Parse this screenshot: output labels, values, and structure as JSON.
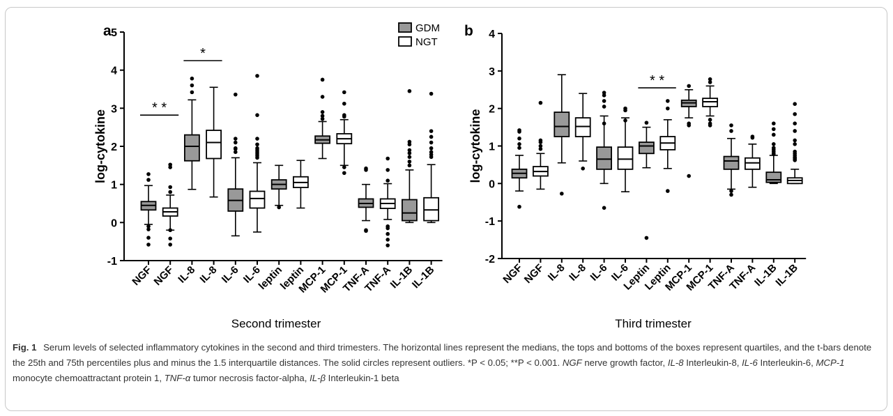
{
  "caption": {
    "label": "Fig. 1",
    "text": "Serum levels of selected inflammatory cytokines in the second and third trimesters. The horizontal lines represent the medians, the tops and bottoms of the boxes represent quartiles, and the t-bars denote the 25th and 75th percentiles plus and minus the 1.5 interquartile distances. The solid circles represent outliers. *P < 0.05; **P < 0.001.",
    "abbreviations": [
      {
        "abbr": "NGF",
        "desc": "nerve growth factor,"
      },
      {
        "abbr": "IL-8",
        "desc": "Interleukin-8,"
      },
      {
        "abbr": "IL-6",
        "desc": "Interleukin-6,"
      },
      {
        "abbr": "MCP-1",
        "desc": "monocyte chemoattractant protein 1,"
      },
      {
        "abbr": "TNF-α",
        "desc": "tumor necrosis factor-alpha,"
      },
      {
        "abbr": "IL-β",
        "desc": "Interleukin-1 beta"
      }
    ]
  },
  "legend": {
    "entries": [
      {
        "name": "GDM",
        "fill": "#999999"
      },
      {
        "name": "NGT",
        "fill": "#ffffff"
      }
    ],
    "placement": "top-right of panel a"
  },
  "colors": {
    "gdm_fill": "#999999",
    "ngt_fill": "#ffffff",
    "stroke": "#000000"
  },
  "chart_data": [
    {
      "type": "box",
      "panel_label": "a",
      "xlabel": "Second trimester",
      "ylabel": "log-cytokine",
      "ylim": [
        -1,
        5
      ],
      "yticks": [
        "-1",
        "0",
        "1",
        "2",
        "3",
        "4",
        "5"
      ],
      "categories": [
        "NGF",
        "NGF",
        "IL-8",
        "IL-8",
        "IL-6",
        "IL-6",
        "leptin",
        "leptin",
        "MCP-1",
        "MCP-1",
        "TNF-A",
        "TNF-A",
        "IL-1B",
        "IL-1B"
      ],
      "groups": [
        "GDM",
        "NGT",
        "GDM",
        "NGT",
        "GDM",
        "NGT",
        "GDM",
        "NGT",
        "GDM",
        "NGT",
        "GDM",
        "NGT",
        "GDM",
        "NGT"
      ],
      "boxes": [
        {
          "lw": -0.05,
          "q1": 0.33,
          "median": 0.45,
          "q3": 0.55,
          "uw": 0.97,
          "outliers": [
            1.27,
            1.12,
            -0.1,
            -0.18,
            -0.4,
            -0.58
          ]
        },
        {
          "lw": -0.2,
          "q1": 0.17,
          "median": 0.28,
          "q3": 0.38,
          "uw": 0.72,
          "outliers": [
            1.52,
            1.45,
            0.93,
            0.8,
            -0.2,
            -0.42,
            -0.58
          ]
        },
        {
          "lw": 0.87,
          "q1": 1.62,
          "median": 2.0,
          "q3": 2.3,
          "uw": 3.22,
          "outliers": [
            3.78,
            3.6,
            3.42
          ]
        },
        {
          "lw": 0.67,
          "q1": 1.68,
          "median": 2.1,
          "q3": 2.42,
          "uw": 3.55,
          "outliers": []
        },
        {
          "lw": -0.35,
          "q1": 0.3,
          "median": 0.58,
          "q3": 0.88,
          "uw": 1.7,
          "outliers": [
            3.36,
            2.2,
            2.1,
            1.95,
            1.93,
            1.85
          ]
        },
        {
          "lw": -0.25,
          "q1": 0.38,
          "median": 0.63,
          "q3": 0.82,
          "uw": 1.57,
          "outliers": [
            3.85,
            2.82,
            2.2,
            2.05,
            1.95,
            1.9,
            1.85,
            1.8,
            1.75,
            1.7
          ]
        },
        {
          "lw": 0.45,
          "q1": 0.88,
          "median": 1.0,
          "q3": 1.12,
          "uw": 1.5,
          "outliers": [
            0.4
          ]
        },
        {
          "lw": 0.38,
          "q1": 0.92,
          "median": 1.05,
          "q3": 1.2,
          "uw": 1.63,
          "outliers": []
        },
        {
          "lw": 1.68,
          "q1": 2.08,
          "median": 2.17,
          "q3": 2.27,
          "uw": 2.65,
          "outliers": [
            3.75,
            3.3,
            2.9,
            2.8,
            2.72
          ]
        },
        {
          "lw": 1.5,
          "q1": 2.07,
          "median": 2.2,
          "q3": 2.33,
          "uw": 2.7,
          "outliers": [
            3.42,
            3.12,
            2.82,
            2.78,
            1.45,
            1.3
          ]
        },
        {
          "lw": 0.05,
          "q1": 0.4,
          "median": 0.5,
          "q3": 0.62,
          "uw": 1.0,
          "outliers": [
            1.42,
            1.38,
            -0.2,
            -0.22
          ]
        },
        {
          "lw": 0.08,
          "q1": 0.37,
          "median": 0.5,
          "q3": 0.62,
          "uw": 1.02,
          "outliers": [
            1.68,
            1.38,
            1.1,
            -0.1,
            -0.15,
            -0.3,
            -0.45,
            -0.6
          ]
        },
        {
          "lw": 0.0,
          "q1": 0.05,
          "median": 0.25,
          "q3": 0.6,
          "uw": 1.38,
          "outliers": [
            3.45,
            2.12,
            2.05,
            1.9,
            1.82,
            1.72,
            1.6,
            1.5
          ]
        },
        {
          "lw": 0.0,
          "q1": 0.05,
          "median": 0.33,
          "q3": 0.65,
          "uw": 1.52,
          "outliers": [
            3.38,
            2.4,
            2.25,
            2.1,
            1.95,
            1.85,
            1.78,
            1.72
          ]
        }
      ],
      "annotations": [
        {
          "text": "* *",
          "between": [
            0,
            1
          ],
          "y": 2.82
        },
        {
          "text": "*",
          "between": [
            2,
            3
          ],
          "y": 4.25
        }
      ]
    },
    {
      "type": "box",
      "panel_label": "b",
      "xlabel": "Third trimester",
      "ylabel": "log-cytokine",
      "ylim": [
        -2,
        4
      ],
      "yticks": [
        "-2",
        "-1",
        "0",
        "1",
        "2",
        "3",
        "4"
      ],
      "categories": [
        "NGF",
        "NGF",
        "IL-8",
        "IL-8",
        "IL-6",
        "IL-6",
        "Leptin",
        "Leptin",
        "MCP-1",
        "MCP-1",
        "TNF-A",
        "TNF-A",
        "IL-1B",
        "IL-1B"
      ],
      "groups": [
        "GDM",
        "NGT",
        "GDM",
        "NGT",
        "GDM",
        "NGT",
        "GDM",
        "NGT",
        "GDM",
        "NGT",
        "GDM",
        "NGT",
        "GDM",
        "NGT"
      ],
      "boxes": [
        {
          "lw": -0.2,
          "q1": 0.15,
          "median": 0.27,
          "q3": 0.38,
          "uw": 0.75,
          "outliers": [
            1.42,
            1.38,
            1.2,
            1.05,
            0.95,
            -0.62
          ]
        },
        {
          "lw": -0.15,
          "q1": 0.2,
          "median": 0.32,
          "q3": 0.45,
          "uw": 0.8,
          "outliers": [
            2.15,
            1.15,
            1.1,
            1.0,
            0.92
          ]
        },
        {
          "lw": 0.55,
          "q1": 1.25,
          "median": 1.52,
          "q3": 1.9,
          "uw": 2.9,
          "outliers": [
            -0.27
          ]
        },
        {
          "lw": 0.6,
          "q1": 1.25,
          "median": 1.52,
          "q3": 1.75,
          "uw": 2.4,
          "outliers": [
            0.4
          ]
        },
        {
          "lw": 0.0,
          "q1": 0.38,
          "median": 0.65,
          "q3": 0.97,
          "uw": 1.8,
          "outliers": [
            2.42,
            2.35,
            2.2,
            2.05,
            1.6,
            -0.65
          ]
        },
        {
          "lw": -0.22,
          "q1": 0.38,
          "median": 0.65,
          "q3": 0.97,
          "uw": 1.75,
          "outliers": [
            2.0,
            1.95,
            1.68
          ]
        },
        {
          "lw": 0.42,
          "q1": 0.8,
          "median": 1.0,
          "q3": 1.1,
          "uw": 1.5,
          "outliers": [
            1.62,
            -1.45
          ]
        },
        {
          "lw": 0.4,
          "q1": 0.9,
          "median": 1.08,
          "q3": 1.25,
          "uw": 1.7,
          "outliers": [
            2.2,
            2.0,
            -0.2
          ]
        },
        {
          "lw": 1.75,
          "q1": 2.05,
          "median": 2.15,
          "q3": 2.22,
          "uw": 2.5,
          "outliers": [
            2.6,
            1.6,
            1.55,
            0.2
          ]
        },
        {
          "lw": 1.8,
          "q1": 2.05,
          "median": 2.18,
          "q3": 2.27,
          "uw": 2.6,
          "outliers": [
            2.78,
            2.7,
            1.7,
            1.6,
            1.55
          ]
        },
        {
          "lw": -0.15,
          "q1": 0.38,
          "median": 0.6,
          "q3": 0.72,
          "uw": 1.2,
          "outliers": [
            1.55,
            1.4,
            -0.2,
            -0.3
          ]
        },
        {
          "lw": -0.1,
          "q1": 0.38,
          "median": 0.55,
          "q3": 0.68,
          "uw": 1.05,
          "outliers": [
            1.25,
            1.22
          ]
        },
        {
          "lw": 0.0,
          "q1": 0.03,
          "median": 0.1,
          "q3": 0.3,
          "uw": 0.75,
          "outliers": [
            1.6,
            1.45,
            1.3,
            1.05,
            0.95,
            0.9,
            0.85,
            0.8,
            0.78
          ]
        },
        {
          "lw": 0.0,
          "q1": 0.0,
          "median": 0.08,
          "q3": 0.15,
          "uw": 0.38,
          "outliers": [
            2.12,
            1.85,
            1.6,
            1.4,
            1.15,
            1.05,
            0.85,
            0.8,
            0.75,
            0.7,
            0.68,
            0.65,
            0.62
          ]
        }
      ],
      "annotations": [
        {
          "text": "* *",
          "between": [
            6,
            7
          ],
          "y": 2.55
        }
      ]
    }
  ]
}
